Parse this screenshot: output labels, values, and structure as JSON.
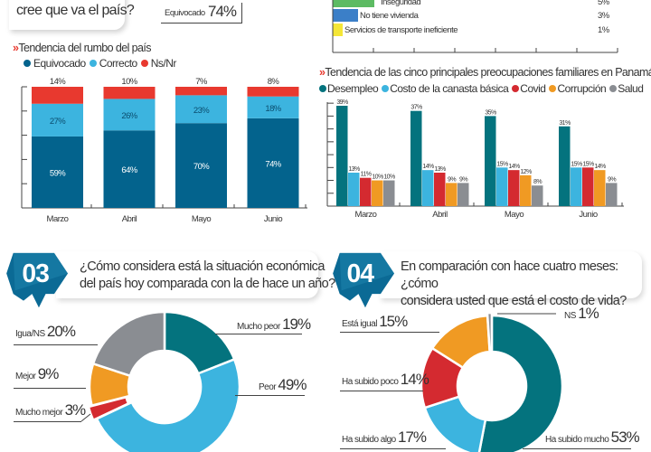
{
  "colors": {
    "dark_blue": "#03638d",
    "light_blue": "#3cb4df",
    "red": "#e8392f",
    "teal": "#04737e",
    "covid_red": "#d42a30",
    "orange": "#f09a23",
    "gray": "#8a8d92",
    "green": "#5dbb63",
    "blue": "#3b7fc8",
    "yellow": "#f4e637",
    "badge_blue": "#0b6a95"
  },
  "q2": {
    "question_fragment": "cree que va el país?",
    "verdict_label": "Equivocado",
    "verdict_value": "74%"
  },
  "concerns_fragment": {
    "rows": [
      {
        "label": "Inseguridad",
        "value": "5%",
        "color": "#5dbb63"
      },
      {
        "label": "No tiene vivienda",
        "value": "3%",
        "color": "#3b7fc8"
      },
      {
        "label": "Servicios de transporte ineficiente",
        "value": "1%",
        "color": "#f4e637"
      }
    ]
  },
  "q3": {
    "number": "03",
    "question_line1": "¿Cómo considera está la situación económica",
    "question_line2": "del país hoy comparada con la de hace un año?"
  },
  "q4": {
    "number": "04",
    "question_line1": "En comparación con hace cuatro meses: ¿cómo",
    "question_line2": "considera usted que está el costo de vida?"
  },
  "chart_data": [
    {
      "type": "bar",
      "stacked": true,
      "title": "Tendencia del rumbo del país",
      "categories": [
        "Marzo",
        "Abril",
        "Mayo",
        "Junio"
      ],
      "series": [
        {
          "name": "Equivocado",
          "values": [
            59,
            64,
            70,
            74
          ],
          "color": "#03638d"
        },
        {
          "name": "Correcto",
          "values": [
            27,
            26,
            23,
            18
          ],
          "color": "#3cb4df"
        },
        {
          "name": "Ns/Nr",
          "values": [
            14,
            10,
            7,
            8
          ],
          "color": "#e8392f"
        }
      ],
      "ylim": [
        0,
        100
      ],
      "legend": "top-left",
      "xlabel": "",
      "ylabel": ""
    },
    {
      "type": "bar",
      "title": "Tendencia de las cinco principales preocupaciones familiares en Panamá",
      "categories": [
        "Marzo",
        "Abril",
        "Mayo",
        "Junio"
      ],
      "series": [
        {
          "name": "Desempleo",
          "values": [
            39,
            37,
            35,
            31
          ],
          "color": "#04737e"
        },
        {
          "name": "Costo de la canasta básica",
          "values": [
            13,
            14,
            15,
            15
          ],
          "color": "#3cb4df"
        },
        {
          "name": "Covid",
          "values": [
            11,
            13,
            14,
            15
          ],
          "color": "#d42a30"
        },
        {
          "name": "Corrupción",
          "values": [
            10,
            9,
            12,
            14
          ],
          "color": "#f09a23"
        },
        {
          "name": "Salud",
          "values": [
            10,
            9,
            8,
            9
          ],
          "color": "#8a8d92"
        }
      ],
      "ylim": [
        0,
        40
      ],
      "legend": "top-left",
      "xlabel": "",
      "ylabel": ""
    },
    {
      "type": "pie",
      "donut": true,
      "title": "¿Cómo considera está la situación económica del país hoy comparada con la de hace un año?",
      "slices": [
        {
          "label": "Mucho peor",
          "value": 19,
          "color": "#04737e"
        },
        {
          "label": "Peor",
          "value": 49,
          "color": "#3cb4df"
        },
        {
          "label": "Mucho mejor",
          "value": 3,
          "color": "#d42a30"
        },
        {
          "label": "Mejor",
          "value": 9,
          "color": "#f09a23"
        },
        {
          "label": "Igua/NS",
          "value": 20,
          "color": "#8a8d92"
        }
      ]
    },
    {
      "type": "pie",
      "donut": true,
      "title": "En comparación con hace cuatro meses: ¿cómo considera usted que está el costo de vida?",
      "slices": [
        {
          "label": "Ha subido mucho",
          "value": 53,
          "color": "#04737e"
        },
        {
          "label": "Ha subido algo",
          "value": 17,
          "color": "#3cb4df"
        },
        {
          "label": "Ha subido poco",
          "value": 14,
          "color": "#d42a30"
        },
        {
          "label": "Está igual",
          "value": 15,
          "color": "#f09a23"
        },
        {
          "label": "NS",
          "value": 1,
          "color": "#8a8d92"
        }
      ]
    }
  ]
}
